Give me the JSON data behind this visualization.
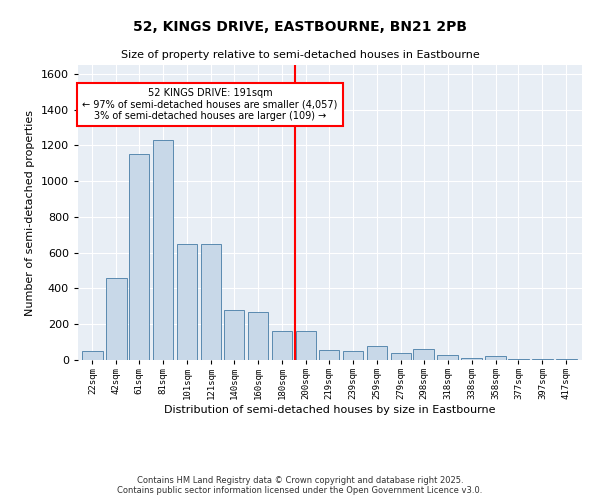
{
  "title": "52, KINGS DRIVE, EASTBOURNE, BN21 2PB",
  "subtitle": "Size of property relative to semi-detached houses in Eastbourne",
  "xlabel": "Distribution of semi-detached houses by size in Eastbourne",
  "ylabel": "Number of semi-detached properties",
  "footnote1": "Contains HM Land Registry data © Crown copyright and database right 2025.",
  "footnote2": "Contains public sector information licensed under the Open Government Licence v3.0.",
  "annotation_title": "52 KINGS DRIVE: 191sqm",
  "annotation_line1": "← 97% of semi-detached houses are smaller (4,057)",
  "annotation_line2": "3% of semi-detached houses are larger (109) →",
  "bar_color": "#c8d8e8",
  "bar_edge_color": "#5a8ab0",
  "vline_color": "red",
  "vline_x": 191,
  "background_color": "#e8eef5",
  "ylim": [
    0,
    1650
  ],
  "xlim": [
    10,
    430
  ],
  "categories": [
    22,
    42,
    61,
    81,
    101,
    121,
    140,
    160,
    180,
    200,
    219,
    239,
    259,
    279,
    298,
    318,
    338,
    358,
    377,
    397,
    417
  ],
  "bin_width": 18,
  "values": [
    50,
    460,
    1150,
    1230,
    650,
    650,
    280,
    270,
    165,
    165,
    55,
    50,
    80,
    40,
    60,
    30,
    10,
    20,
    5,
    5,
    5
  ],
  "yticks": [
    0,
    200,
    400,
    600,
    800,
    1000,
    1200,
    1400,
    1600
  ]
}
